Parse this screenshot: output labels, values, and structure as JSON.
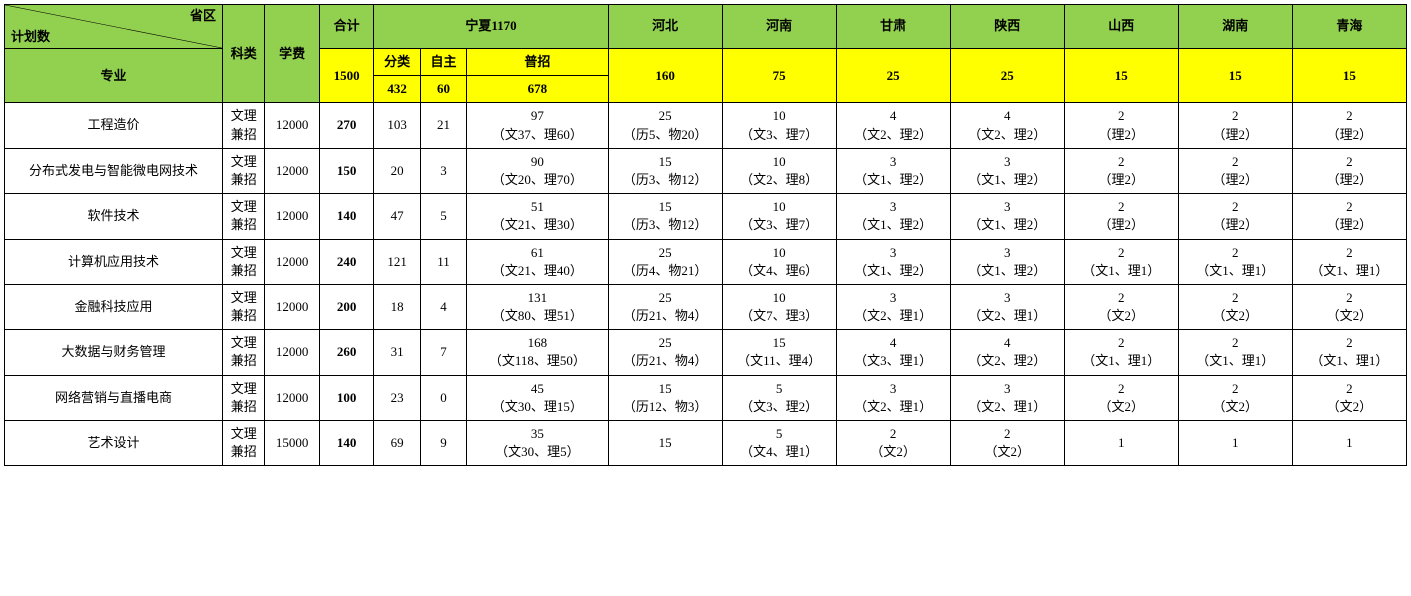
{
  "header": {
    "diag_top": "省区",
    "diag_bottom": "计划数",
    "major_label": "专业",
    "type_label": "科类",
    "fee_label": "学费",
    "total_label": "合计",
    "ningxia_label": "宁夏1170",
    "ningxia_sub1": "分类",
    "ningxia_sub2": "自主",
    "ningxia_sub3": "普招",
    "ningxia_sub1_val": "432",
    "ningxia_sub2_val": "60",
    "ningxia_sub3_val": "678",
    "total_val": "1500",
    "provinces": [
      {
        "name": "河北",
        "quota": "160"
      },
      {
        "name": "河南",
        "quota": "75"
      },
      {
        "name": "甘肃",
        "quota": "25"
      },
      {
        "name": "陕西",
        "quota": "25"
      },
      {
        "name": "山西",
        "quota": "15"
      },
      {
        "name": "湖南",
        "quota": "15"
      },
      {
        "name": "青海",
        "quota": "15"
      }
    ]
  },
  "rows": [
    {
      "major": "工程造价",
      "type": "文理兼招",
      "fee": "12000",
      "total": "270",
      "nx1": "103",
      "nx2": "21",
      "nx3_l1": "97",
      "nx3_l2": "（文37、理60）",
      "cells": [
        {
          "l1": "25",
          "l2": "（历5、物20）"
        },
        {
          "l1": "10",
          "l2": "（文3、理7）"
        },
        {
          "l1": "4",
          "l2": "（文2、理2）"
        },
        {
          "l1": "4",
          "l2": "（文2、理2）"
        },
        {
          "l1": "2",
          "l2": "（理2）"
        },
        {
          "l1": "2",
          "l2": "（理2）"
        },
        {
          "l1": "2",
          "l2": "（理2）"
        }
      ]
    },
    {
      "major": "分布式发电与智能微电网技术",
      "type": "文理兼招",
      "fee": "12000",
      "total": "150",
      "nx1": "20",
      "nx2": "3",
      "nx3_l1": "90",
      "nx3_l2": "（文20、理70）",
      "cells": [
        {
          "l1": "15",
          "l2": "（历3、物12）"
        },
        {
          "l1": "10",
          "l2": "（文2、理8）"
        },
        {
          "l1": "3",
          "l2": "（文1、理2）"
        },
        {
          "l1": "3",
          "l2": "（文1、理2）"
        },
        {
          "l1": "2",
          "l2": "（理2）"
        },
        {
          "l1": "2",
          "l2": "（理2）"
        },
        {
          "l1": "2",
          "l2": "（理2）"
        }
      ]
    },
    {
      "major": "软件技术",
      "type": "文理兼招",
      "fee": "12000",
      "total": "140",
      "nx1": "47",
      "nx2": "5",
      "nx3_l1": "51",
      "nx3_l2": "（文21、理30）",
      "cells": [
        {
          "l1": "15",
          "l2": "（历3、物12）"
        },
        {
          "l1": "10",
          "l2": "（文3、理7）"
        },
        {
          "l1": "3",
          "l2": "（文1、理2）"
        },
        {
          "l1": "3",
          "l2": "（文1、理2）"
        },
        {
          "l1": "2",
          "l2": "（理2）"
        },
        {
          "l1": "2",
          "l2": "（理2）"
        },
        {
          "l1": "2",
          "l2": "（理2）"
        }
      ]
    },
    {
      "major": "计算机应用技术",
      "type": "文理兼招",
      "fee": "12000",
      "total": "240",
      "nx1": "121",
      "nx2": "11",
      "nx3_l1": "61",
      "nx3_l2": "（文21、理40）",
      "cells": [
        {
          "l1": "25",
          "l2": "（历4、物21）"
        },
        {
          "l1": "10",
          "l2": "（文4、理6）"
        },
        {
          "l1": "3",
          "l2": "（文1、理2）"
        },
        {
          "l1": "3",
          "l2": "（文1、理2）"
        },
        {
          "l1": "2",
          "l2": "（文1、理1）"
        },
        {
          "l1": "2",
          "l2": "（文1、理1）"
        },
        {
          "l1": "2",
          "l2": "（文1、理1）"
        }
      ]
    },
    {
      "major": "金融科技应用",
      "type": "文理兼招",
      "fee": "12000",
      "total": "200",
      "nx1": "18",
      "nx2": "4",
      "nx3_l1": "131",
      "nx3_l2": "（文80、理51）",
      "cells": [
        {
          "l1": "25",
          "l2": "（历21、物4）"
        },
        {
          "l1": "10",
          "l2": "（文7、理3）"
        },
        {
          "l1": "3",
          "l2": "（文2、理1）"
        },
        {
          "l1": "3",
          "l2": "（文2、理1）"
        },
        {
          "l1": "2",
          "l2": "（文2）"
        },
        {
          "l1": "2",
          "l2": "（文2）"
        },
        {
          "l1": "2",
          "l2": "（文2）"
        }
      ]
    },
    {
      "major": "大数据与财务管理",
      "type": "文理兼招",
      "fee": "12000",
      "total": "260",
      "nx1": "31",
      "nx2": "7",
      "nx3_l1": "168",
      "nx3_l2": "（文118、理50）",
      "cells": [
        {
          "l1": "25",
          "l2": "（历21、物4）"
        },
        {
          "l1": "15",
          "l2": "（文11、理4）"
        },
        {
          "l1": "4",
          "l2": "（文3、理1）"
        },
        {
          "l1": "4",
          "l2": "（文2、理2）"
        },
        {
          "l1": "2",
          "l2": "（文1、理1）"
        },
        {
          "l1": "2",
          "l2": "（文1、理1）"
        },
        {
          "l1": "2",
          "l2": "（文1、理1）"
        }
      ]
    },
    {
      "major": "网络营销与直播电商",
      "type": "文理兼招",
      "fee": "12000",
      "total": "100",
      "nx1": "23",
      "nx2": "0",
      "nx3_l1": "45",
      "nx3_l2": "（文30、理15）",
      "cells": [
        {
          "l1": "15",
          "l2": "（历12、物3）"
        },
        {
          "l1": "5",
          "l2": "（文3、理2）"
        },
        {
          "l1": "3",
          "l2": "（文2、理1）"
        },
        {
          "l1": "3",
          "l2": "（文2、理1）"
        },
        {
          "l1": "2",
          "l2": "（文2）"
        },
        {
          "l1": "2",
          "l2": "（文2）"
        },
        {
          "l1": "2",
          "l2": "（文2）"
        }
      ]
    },
    {
      "major": "艺术设计",
      "type": "文理兼招",
      "fee": "15000",
      "total": "140",
      "nx1": "69",
      "nx2": "9",
      "nx3_l1": "35",
      "nx3_l2": "（文30、理5）",
      "cells": [
        {
          "l1": "15",
          "l2": ""
        },
        {
          "l1": "5",
          "l2": "（文4、理1）"
        },
        {
          "l1": "2",
          "l2": "（文2）"
        },
        {
          "l1": "2",
          "l2": "（文2）"
        },
        {
          "l1": "1",
          "l2": ""
        },
        {
          "l1": "1",
          "l2": ""
        },
        {
          "l1": "1",
          "l2": ""
        }
      ]
    }
  ]
}
